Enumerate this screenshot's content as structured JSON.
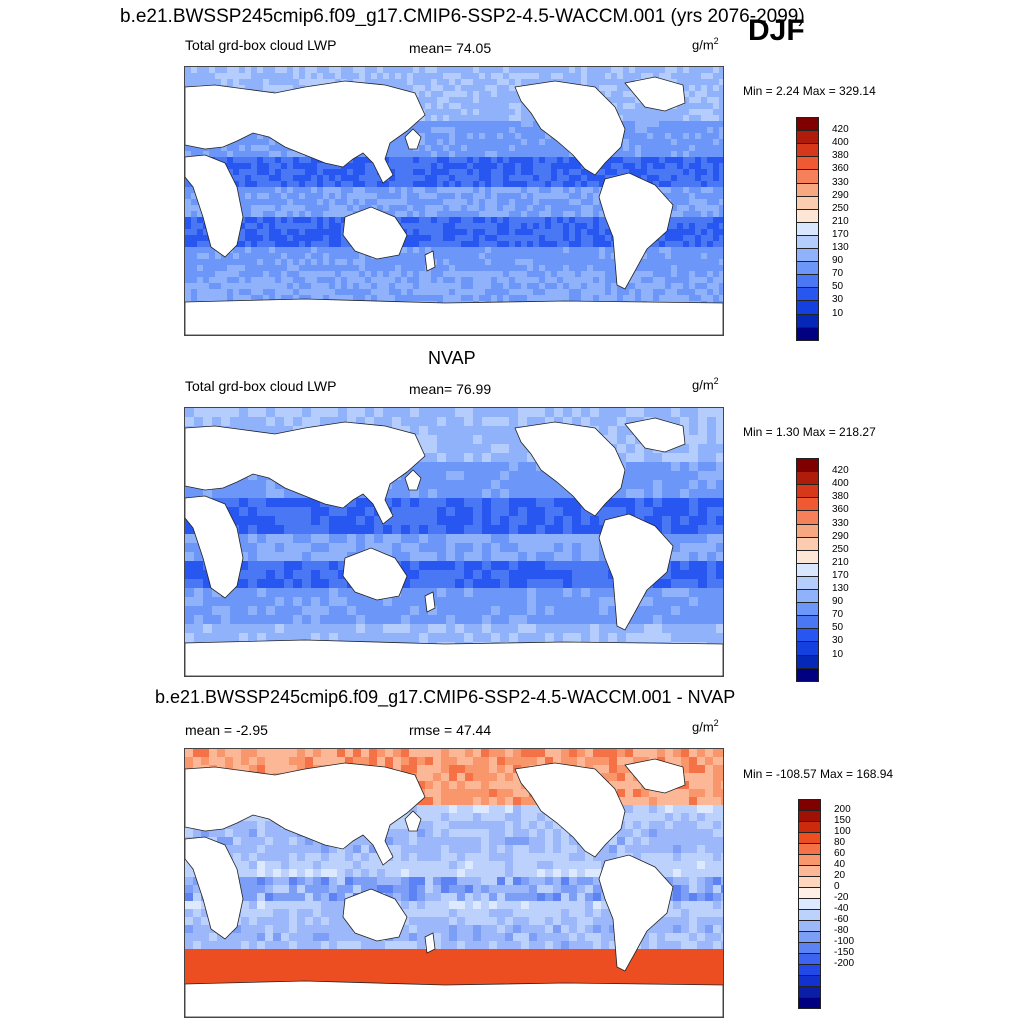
{
  "colors": {
    "lwp": [
      "#000080",
      "#0628b8",
      "#1440e0",
      "#2856f0",
      "#4a78f5",
      "#6c96f8",
      "#90b2fb",
      "#b5cdfd",
      "#d8e6fe",
      "#fde6d6",
      "#fbccb0",
      "#f8a880",
      "#f5805a",
      "#f05a32",
      "#d8381a",
      "#b01c0a",
      "#800000"
    ],
    "diff": [
      "#000080",
      "#0a1ea8",
      "#1232d0",
      "#2248e8",
      "#3c64f0",
      "#5c82f4",
      "#7c9ef7",
      "#9cb8fa",
      "#bcd2fc",
      "#dce9fe",
      "#fef0e6",
      "#fdd6bd",
      "#fcb896",
      "#f9966c",
      "#f57246",
      "#ec4e22",
      "#cc2a0c",
      "#a01004",
      "#800000"
    ]
  },
  "header": {
    "title": "b.e21.BWSSP245cmip6.f09_g17.CMIP6-SSP2-4.5-WACCM.001 (yrs 2076-2099)",
    "season": "DJF"
  },
  "panels": [
    {
      "title": "",
      "variable": "Total grd-box cloud LWP",
      "stat": "mean=  74.05",
      "units_base": "g/m",
      "units_exp": "2",
      "minmax": "Min =   2.24 Max = 329.14",
      "colorbar": {
        "palette": "lwp",
        "levels": [
          "420",
          "400",
          "380",
          "360",
          "330",
          "290",
          "250",
          "210",
          "170",
          "130",
          "90",
          "70",
          "50",
          "30",
          "10"
        ]
      },
      "field": "model"
    },
    {
      "title": "NVAP",
      "variable": "Total grd-box cloud LWP",
      "stat": "mean=  76.99",
      "units_base": "g/m",
      "units_exp": "2",
      "minmax": "Min =   1.30 Max = 218.27",
      "colorbar": {
        "palette": "lwp",
        "levels": [
          "420",
          "400",
          "380",
          "360",
          "330",
          "290",
          "250",
          "210",
          "170",
          "130",
          "90",
          "70",
          "50",
          "30",
          "10"
        ]
      },
      "field": "obs"
    },
    {
      "title": "b.e21.BWSSP245cmip6.f09_g17.CMIP6-SSP2-4.5-WACCM.001 - NVAP",
      "variable": "mean =  -2.95",
      "stat": "rmse =  47.44",
      "units_base": "g/m",
      "units_exp": "2",
      "minmax": "Min = -108.57 Max = 168.94",
      "colorbar": {
        "palette": "diff",
        "levels": [
          "200",
          "150",
          "100",
          "80",
          "60",
          "40",
          "20",
          "0",
          "-20",
          "-40",
          "-60",
          "-80",
          "-100",
          "-150",
          "-200"
        ]
      },
      "field": "diff"
    }
  ]
}
